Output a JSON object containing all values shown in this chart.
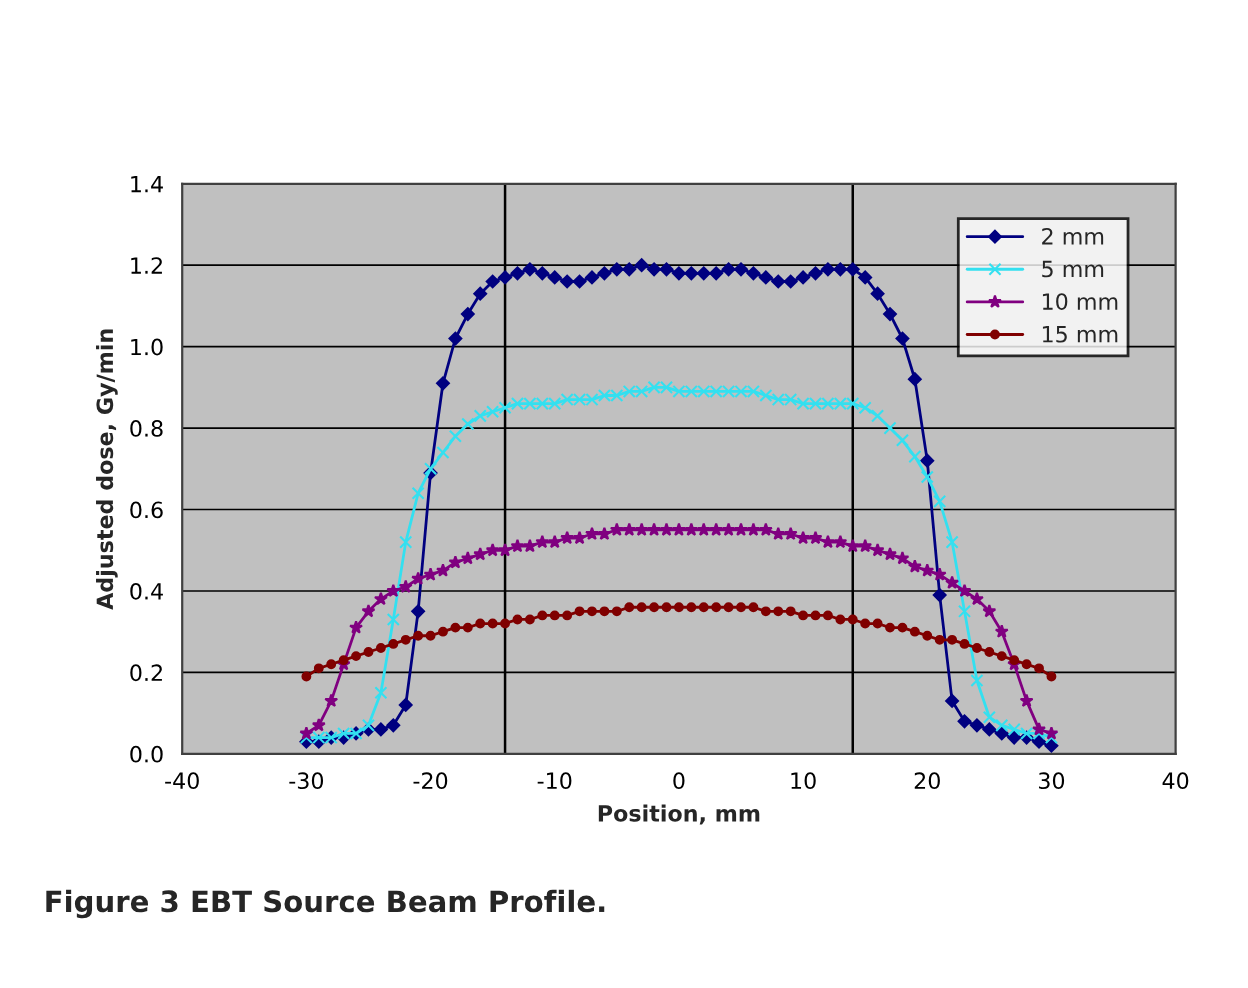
{
  "chart_data": {
    "type": "line",
    "xlabel": "Position, mm",
    "ylabel": "Adjusted dose, Gy/min",
    "annotations": [
      "Figure 3 EBT Source Beam Profile."
    ],
    "x": [
      -30,
      -29,
      -28,
      -27,
      -26,
      -25,
      -24,
      -23,
      -22,
      -21,
      -20,
      -19,
      -18,
      -17,
      -16,
      -15,
      -14,
      -13,
      -12,
      -11,
      -10,
      -9,
      -8,
      -7,
      -6,
      -5,
      -4,
      -3,
      -2,
      -1,
      0,
      1,
      2,
      3,
      4,
      5,
      6,
      7,
      8,
      9,
      10,
      11,
      12,
      13,
      14,
      15,
      16,
      17,
      18,
      19,
      20,
      21,
      22,
      23,
      24,
      25,
      26,
      27,
      28,
      29,
      30
    ],
    "series": [
      {
        "name": "2 mm",
        "color": "#000080",
        "marker": "diamond",
        "values": [
          0.03,
          0.03,
          0.04,
          0.04,
          0.05,
          0.06,
          0.06,
          0.07,
          0.12,
          0.35,
          0.69,
          0.91,
          1.02,
          1.08,
          1.13,
          1.16,
          1.17,
          1.18,
          1.19,
          1.18,
          1.17,
          1.16,
          1.16,
          1.17,
          1.18,
          1.19,
          1.19,
          1.2,
          1.19,
          1.19,
          1.18,
          1.18,
          1.18,
          1.18,
          1.19,
          1.19,
          1.18,
          1.17,
          1.16,
          1.16,
          1.17,
          1.18,
          1.19,
          1.19,
          1.19,
          1.17,
          1.13,
          1.08,
          1.02,
          0.92,
          0.72,
          0.39,
          0.13,
          0.08,
          0.07,
          0.06,
          0.05,
          0.04,
          0.04,
          0.03,
          0.02
        ]
      },
      {
        "name": "5 mm",
        "color": "#33e0f0",
        "marker": "cross",
        "values": [
          0.04,
          0.04,
          0.04,
          0.05,
          0.05,
          0.07,
          0.15,
          0.33,
          0.52,
          0.64,
          0.7,
          0.74,
          0.78,
          0.81,
          0.83,
          0.84,
          0.85,
          0.86,
          0.86,
          0.86,
          0.86,
          0.87,
          0.87,
          0.87,
          0.88,
          0.88,
          0.89,
          0.89,
          0.9,
          0.9,
          0.89,
          0.89,
          0.89,
          0.89,
          0.89,
          0.89,
          0.89,
          0.88,
          0.87,
          0.87,
          0.86,
          0.86,
          0.86,
          0.86,
          0.86,
          0.85,
          0.83,
          0.8,
          0.77,
          0.73,
          0.68,
          0.62,
          0.52,
          0.35,
          0.18,
          0.09,
          0.07,
          0.06,
          0.05,
          0.05,
          0.04
        ]
      },
      {
        "name": "10 mm",
        "color": "#800080",
        "marker": "star",
        "values": [
          0.05,
          0.07,
          0.13,
          0.22,
          0.31,
          0.35,
          0.38,
          0.4,
          0.41,
          0.43,
          0.44,
          0.45,
          0.47,
          0.48,
          0.49,
          0.5,
          0.5,
          0.51,
          0.51,
          0.52,
          0.52,
          0.53,
          0.53,
          0.54,
          0.54,
          0.55,
          0.55,
          0.55,
          0.55,
          0.55,
          0.55,
          0.55,
          0.55,
          0.55,
          0.55,
          0.55,
          0.55,
          0.55,
          0.54,
          0.54,
          0.53,
          0.53,
          0.52,
          0.52,
          0.51,
          0.51,
          0.5,
          0.49,
          0.48,
          0.46,
          0.45,
          0.44,
          0.42,
          0.4,
          0.38,
          0.35,
          0.3,
          0.22,
          0.13,
          0.06,
          0.05
        ]
      },
      {
        "name": "15 mm",
        "color": "#800000",
        "marker": "circle",
        "values": [
          0.19,
          0.21,
          0.22,
          0.23,
          0.24,
          0.25,
          0.26,
          0.27,
          0.28,
          0.29,
          0.29,
          0.3,
          0.31,
          0.31,
          0.32,
          0.32,
          0.32,
          0.33,
          0.33,
          0.34,
          0.34,
          0.34,
          0.35,
          0.35,
          0.35,
          0.35,
          0.36,
          0.36,
          0.36,
          0.36,
          0.36,
          0.36,
          0.36,
          0.36,
          0.36,
          0.36,
          0.36,
          0.35,
          0.35,
          0.35,
          0.34,
          0.34,
          0.34,
          0.33,
          0.33,
          0.32,
          0.32,
          0.31,
          0.31,
          0.3,
          0.29,
          0.28,
          0.28,
          0.27,
          0.26,
          0.25,
          0.24,
          0.23,
          0.22,
          0.21,
          0.19
        ]
      }
    ],
    "ref_lines": [
      {
        "axis": "x",
        "value": -14,
        "color": "#000000"
      },
      {
        "axis": "x",
        "value": 14,
        "color": "#000000"
      }
    ],
    "xlim": [
      -40,
      40
    ],
    "xticks": [
      -40,
      -30,
      -20,
      -10,
      0,
      10,
      20,
      30,
      40
    ],
    "ylim": [
      0,
      1.4
    ],
    "yticks": [
      {
        "value": 0,
        "label": "0.0"
      },
      {
        "value": 0.2,
        "label": "0.2"
      },
      {
        "value": 0.4,
        "label": "0.4"
      },
      {
        "value": 0.6,
        "label": "0.6"
      },
      {
        "value": 0.8,
        "label": "0.8"
      },
      {
        "value": 1.0,
        "label": "1.0"
      },
      {
        "value": 1.2,
        "label": "1.2"
      },
      {
        "value": 1.4,
        "label": "1.4"
      }
    ],
    "grid": "y",
    "legend": "top right",
    "line_style": "solid"
  }
}
